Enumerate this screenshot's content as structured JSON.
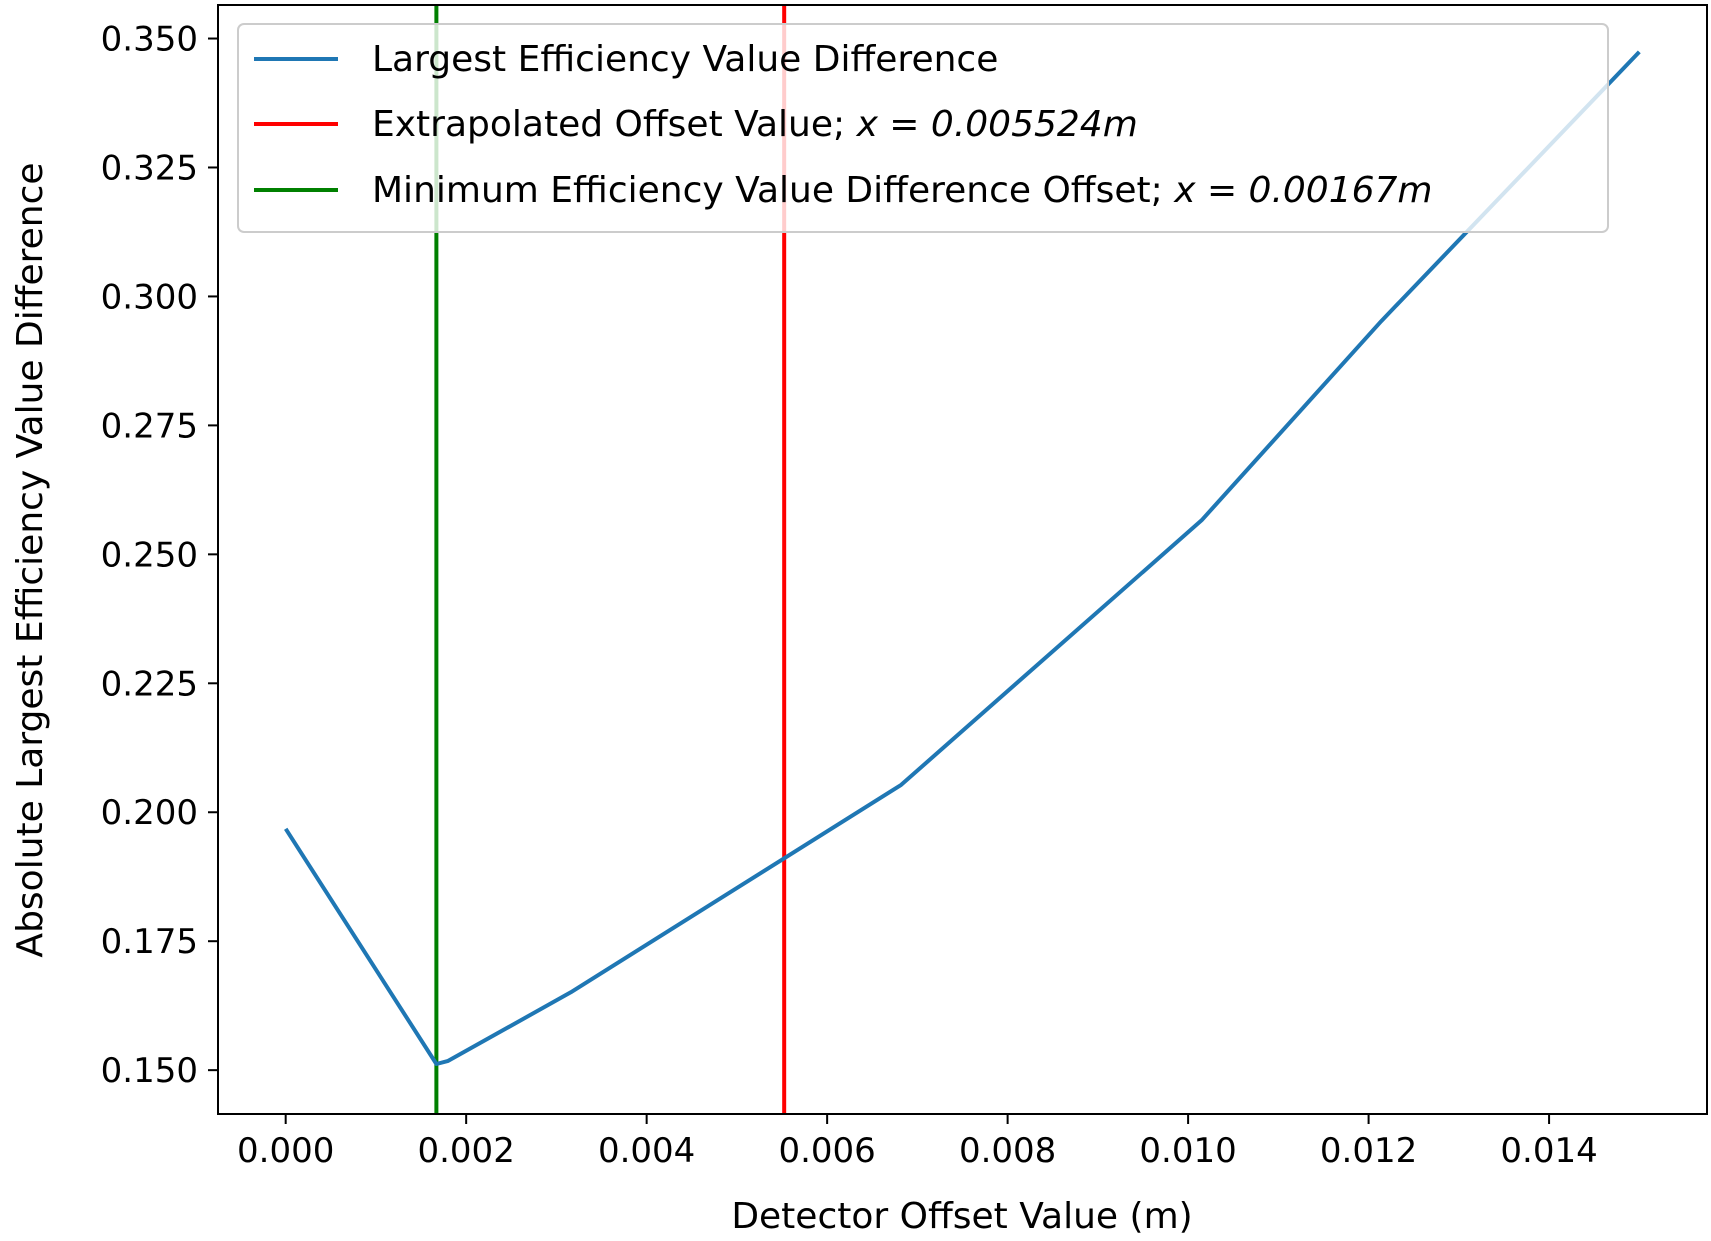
{
  "chart_data": {
    "type": "line",
    "xlabel": "Detector Offset Value (m)",
    "ylabel": "Absolute Largest Efficiency Value Difference",
    "xlim": [
      -0.00075,
      0.01575
    ],
    "ylim": [
      0.1415,
      0.3565
    ],
    "x_ticks": [
      "0.000",
      "0.002",
      "0.004",
      "0.006",
      "0.008",
      "0.010",
      "0.012",
      "0.014"
    ],
    "y_ticks": [
      "0.150",
      "0.175",
      "0.200",
      "0.225",
      "0.250",
      "0.275",
      "0.300",
      "0.325",
      "0.350"
    ],
    "grid": false,
    "legend_position": "top-left",
    "series": [
      {
        "name": "Largest Efficiency Value Difference",
        "color": "#1f77b4",
        "x": [
          0.0,
          0.00167,
          0.0018,
          0.00316,
          0.00682,
          0.01015,
          0.01214,
          0.015
        ],
        "y": [
          0.1968,
          0.1512,
          0.1518,
          0.1651,
          0.2053,
          0.2566,
          0.2952,
          0.3474
        ]
      }
    ],
    "vlines": [
      {
        "label": "Extrapolated Offset Value; ",
        "x_label": "x = 0.005524m",
        "x": 0.005524,
        "color": "#ff0000"
      },
      {
        "label": "Minimum Efficiency Value Difference Offset; ",
        "x_label": "x = 0.00167m",
        "x": 0.00167,
        "color": "#008000"
      }
    ]
  }
}
